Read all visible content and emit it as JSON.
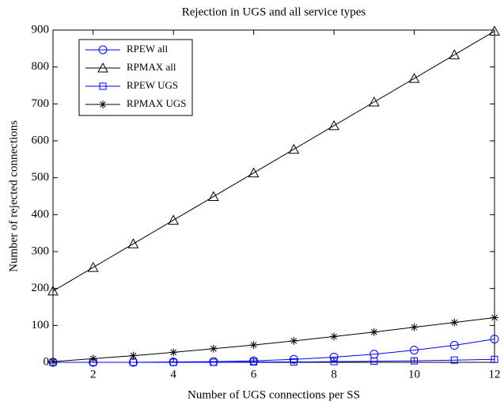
{
  "chart_data": {
    "type": "line",
    "title": "Rejection in UGS and all service types",
    "xlabel": "Number of UGS connections per SS",
    "ylabel": "Number of rejected connections",
    "x": [
      1,
      2,
      3,
      4,
      5,
      6,
      7,
      8,
      9,
      10,
      11,
      12
    ],
    "series": [
      {
        "name": "RPEW all",
        "color": "#0000ff",
        "marker": "circle",
        "values": [
          0,
          0,
          0,
          1,
          2,
          4,
          8,
          14,
          22,
          33,
          46,
          63
        ]
      },
      {
        "name": "RPMAX all",
        "color": "#000000",
        "marker": "triangle",
        "values": [
          193,
          257,
          321,
          385,
          449,
          513,
          577,
          641,
          705,
          769,
          833,
          897
        ]
      },
      {
        "name": "RPEW UGS",
        "color": "#0000ff",
        "marker": "square",
        "values": [
          0,
          0,
          0,
          0,
          0,
          1,
          1,
          2,
          3,
          4,
          6,
          8
        ]
      },
      {
        "name": "RPMAX UGS",
        "color": "#000000",
        "marker": "star",
        "values": [
          2,
          10,
          18,
          27,
          37,
          47,
          58,
          70,
          82,
          95,
          108,
          121
        ]
      }
    ],
    "xlim": [
      1,
      12
    ],
    "xticks": [
      2,
      4,
      6,
      8,
      10,
      12
    ],
    "ylim": [
      0,
      900
    ],
    "yticks": [
      0,
      100,
      200,
      300,
      400,
      500,
      600,
      700,
      800,
      900
    ],
    "grid": false,
    "legend": "upper left"
  }
}
